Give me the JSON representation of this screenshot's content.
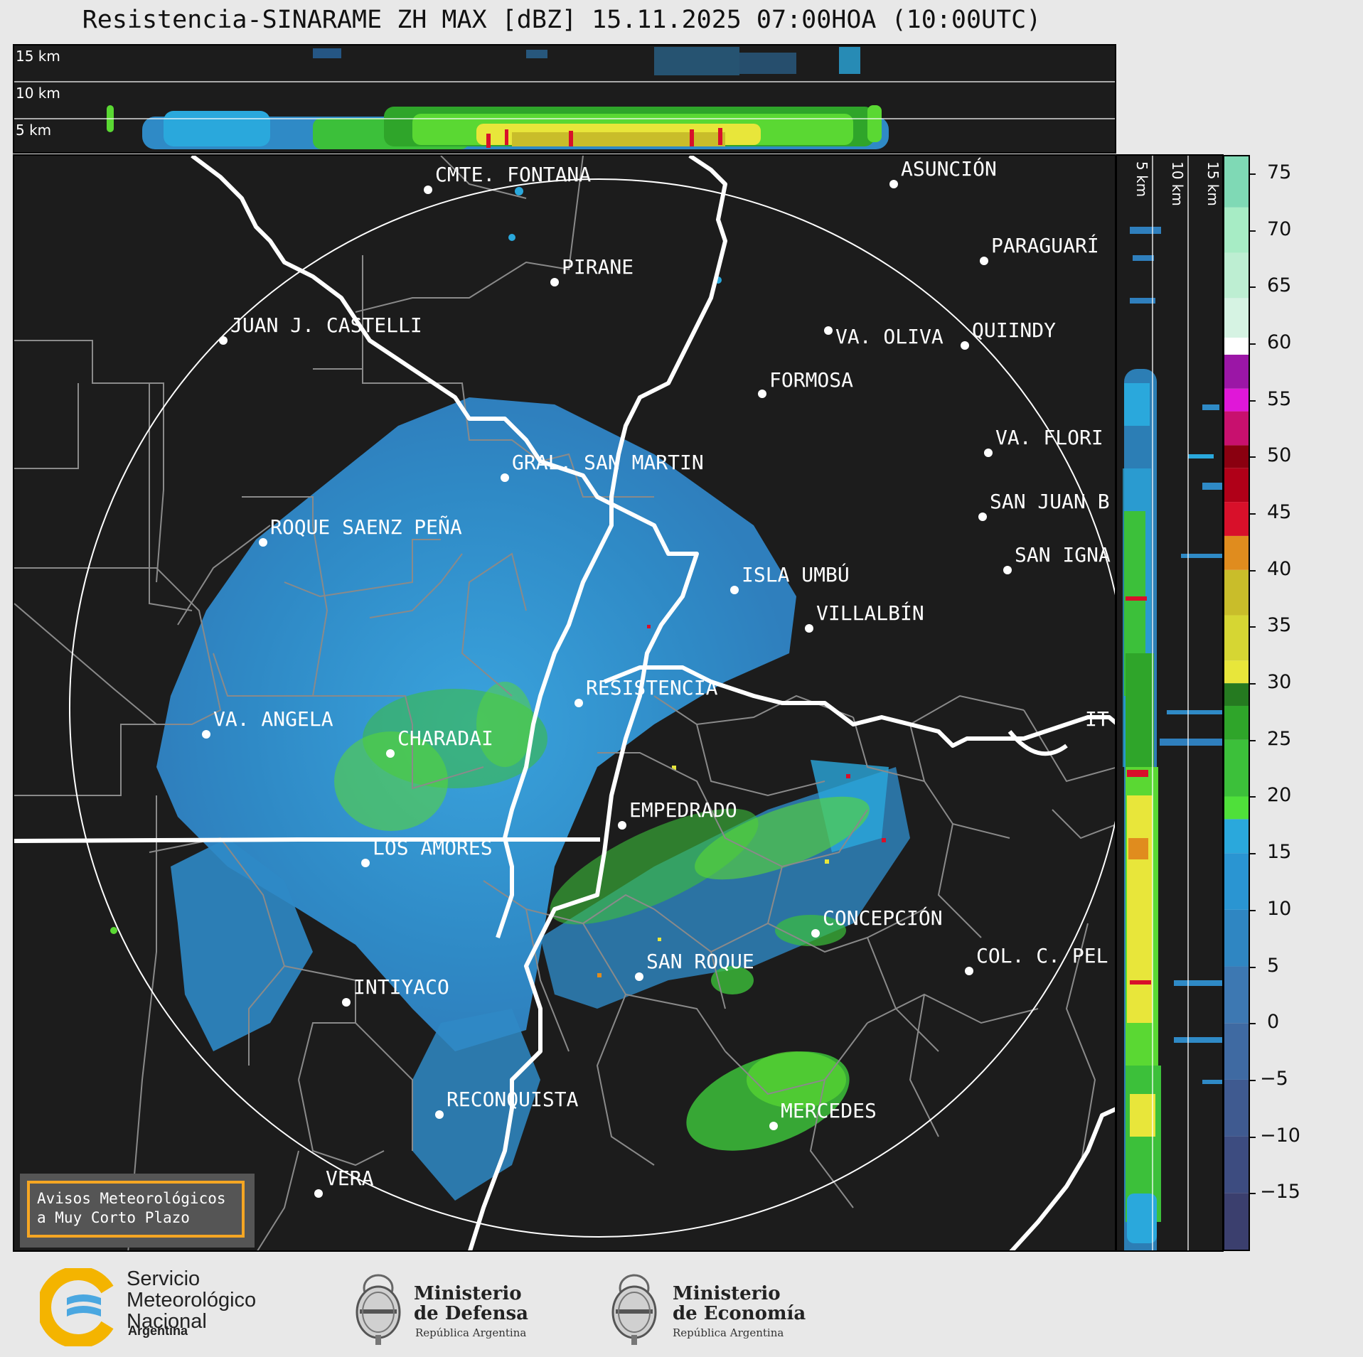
{
  "title": "Resistencia-SINARAME ZH MAX [dBZ] 15.11.2025 07:00HOA (10:00UTC)",
  "height_axis": {
    "top_labels": [
      "15 km",
      "10 km",
      "5 km"
    ],
    "side_labels": [
      "5 km",
      "10 km",
      "15 km"
    ]
  },
  "cities": [
    {
      "name": "CMTE. FONTANA"
    },
    {
      "name": "PIRANE"
    },
    {
      "name": "JUAN J. CASTELLI"
    },
    {
      "name": "ASUNCIÓN"
    },
    {
      "name": "PARAGUARÍ"
    },
    {
      "name": "VA. OLIVA"
    },
    {
      "name": "QUIINDY"
    },
    {
      "name": "FORMOSA"
    },
    {
      "name": "VA. FLORI"
    },
    {
      "name": "GRAL. SAN MARTIN"
    },
    {
      "name": "SAN JUAN B"
    },
    {
      "name": "ROQUE SAENZ PEÑA"
    },
    {
      "name": "SAN IGNA"
    },
    {
      "name": "ISLA UMBÚ"
    },
    {
      "name": "VILLALBÍN"
    },
    {
      "name": "RESISTENCIA"
    },
    {
      "name": "VA. ANGELA"
    },
    {
      "name": "CHARADAI"
    },
    {
      "name": "IT"
    },
    {
      "name": "EMPEDRADO"
    },
    {
      "name": "LOS AMORES"
    },
    {
      "name": "CONCEPCIÓN"
    },
    {
      "name": "SAN ROQUE"
    },
    {
      "name": "COL. C. PEL"
    },
    {
      "name": "INTIYACO"
    },
    {
      "name": "RECONQUISTA"
    },
    {
      "name": "MERCEDES"
    },
    {
      "name": "VERA"
    }
  ],
  "colorbar": {
    "ticks": [
      "75",
      "70",
      "65",
      "60",
      "55",
      "50",
      "45",
      "40",
      "35",
      "30",
      "25",
      "20",
      "15",
      "10",
      "5",
      "0",
      "−5",
      "−10",
      "−15"
    ],
    "min": -20,
    "max": 76.5,
    "colors": {
      "very_low": "#3b3f6e",
      "low": "#3f5f98",
      "mid_low": "#2f7fbd",
      "cyan": "#2aa8dc",
      "green": "#2fa52a",
      "bright_green": "#5ad833",
      "yellow": "#e8e63a",
      "olive": "#c9bd2a",
      "orange": "#e08c1e",
      "red": "#d8102a",
      "dark_red": "#8a0010",
      "magenta": "#e017d8",
      "purple": "#9b16a6",
      "white": "#ffffff",
      "mint": "#a7ecc5",
      "teal": "#7fd9b5"
    }
  },
  "warning": {
    "line1": "Avisos Meteorológicos",
    "line2": "a Muy Corto Plazo"
  },
  "footer": {
    "smn": {
      "line1": "Servicio",
      "line2": "Meteorológico",
      "line3": "Nacional",
      "country": "Argentina"
    },
    "defensa": {
      "line1": "Ministerio",
      "line2": "de Defensa",
      "sub": "República Argentina"
    },
    "economia": {
      "line1": "Ministerio",
      "line2": "de Economía",
      "sub": "República Argentina"
    }
  }
}
